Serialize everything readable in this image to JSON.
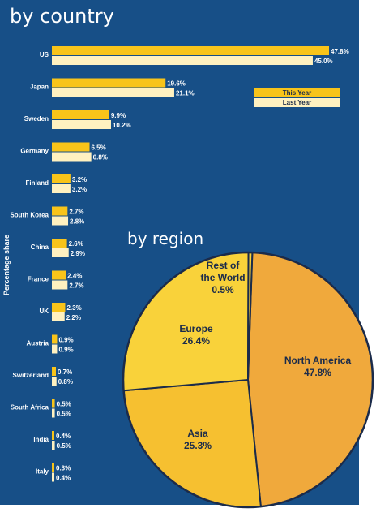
{
  "titles": {
    "country": "by country",
    "region": "by region"
  },
  "y_axis_label": "Percentage share",
  "legend": {
    "this_year": "This Year",
    "last_year": "Last Year"
  },
  "colors": {
    "background": "#174f87",
    "this_year": "#f8c41a",
    "last_year": "#fff1c0",
    "pie_orange": "#f0a93c",
    "pie_yellow": "#f9d23a",
    "pie_gold": "#f6c030",
    "pie_outline": "#1b2b4a"
  },
  "chart_data": [
    {
      "type": "bar",
      "orientation": "horizontal",
      "title": "by country",
      "ylabel": "Percentage share",
      "xlim": [
        0,
        47.8
      ],
      "grid": false,
      "legend_position": "right",
      "categories": [
        "US",
        "Japan",
        "Sweden",
        "Germany",
        "Finland",
        "South Korea",
        "China",
        "France",
        "UK",
        "Austria",
        "Switzerland",
        "South Africa",
        "India",
        "Italy"
      ],
      "series": [
        {
          "name": "This Year",
          "values": [
            47.8,
            19.6,
            9.9,
            6.5,
            3.2,
            2.7,
            2.6,
            2.4,
            2.3,
            0.9,
            0.7,
            0.5,
            0.4,
            0.3
          ],
          "labels": [
            "47.8%",
            "19.6%",
            "9.9%",
            "6.5%",
            "3.2%",
            "2.7%",
            "2.6%",
            "2.4%",
            "2.3%",
            "0.9%",
            "0.7%",
            "0.5%",
            "0.4%",
            "0.3%"
          ]
        },
        {
          "name": "Last Year",
          "values": [
            45.0,
            21.1,
            10.2,
            6.8,
            3.2,
            2.8,
            2.9,
            2.7,
            2.2,
            0.9,
            0.8,
            0.5,
            0.5,
            0.4
          ],
          "labels": [
            "45.0%",
            "21.1%",
            "10.2%",
            "6.8%",
            "3.2%",
            "2.8%",
            "2.9%",
            "2.7%",
            "2.2%",
            "0.9%",
            "0.8%",
            "0.5%",
            "0.5%",
            "0.4%"
          ]
        }
      ]
    },
    {
      "type": "pie",
      "title": "by region",
      "slices": [
        {
          "label": "North America",
          "value": 47.8,
          "text": "47.8%"
        },
        {
          "label": "Asia",
          "value": 25.3,
          "text": "25.3%"
        },
        {
          "label": "Europe",
          "value": 26.4,
          "text": "26.4%"
        },
        {
          "label": "Rest of the World",
          "value": 0.5,
          "text": "0.5%"
        }
      ]
    }
  ]
}
